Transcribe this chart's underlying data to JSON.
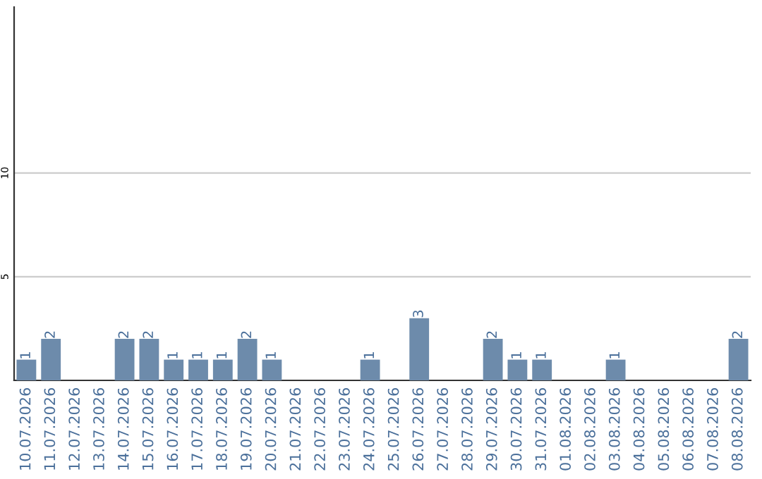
{
  "chart_data": {
    "type": "bar",
    "categories": [
      "10.07.2026",
      "11.07.2026",
      "12.07.2026",
      "13.07.2026",
      "14.07.2026",
      "15.07.2026",
      "16.07.2026",
      "17.07.2026",
      "18.07.2026",
      "19.07.2026",
      "20.07.2026",
      "21.07.2026",
      "22.07.2026",
      "23.07.2026",
      "24.07.2026",
      "25.07.2026",
      "26.07.2026",
      "27.07.2026",
      "28.07.2026",
      "29.07.2026",
      "30.07.2026",
      "31.07.2026",
      "01.08.2026",
      "02.08.2026",
      "03.08.2026",
      "04.08.2026",
      "05.08.2026",
      "06.08.2026",
      "07.08.2026",
      "08.08.2026"
    ],
    "values": [
      1,
      2,
      0,
      0,
      2,
      2,
      1,
      1,
      1,
      2,
      1,
      0,
      0,
      0,
      1,
      0,
      3,
      0,
      0,
      2,
      1,
      1,
      0,
      0,
      1,
      0,
      0,
      0,
      0,
      2
    ],
    "value_labels": [
      "1",
      "2",
      null,
      null,
      "2",
      "2",
      "1",
      "1",
      "1",
      "2",
      "1",
      null,
      null,
      null,
      "1",
      null,
      "3",
      null,
      null,
      "2",
      "1",
      "1",
      null,
      null,
      "1",
      null,
      null,
      null,
      null,
      "2"
    ],
    "color": "#6d8bab",
    "ylim": [
      0,
      18
    ],
    "yticks": [
      5,
      10
    ],
    "grid": "y"
  }
}
